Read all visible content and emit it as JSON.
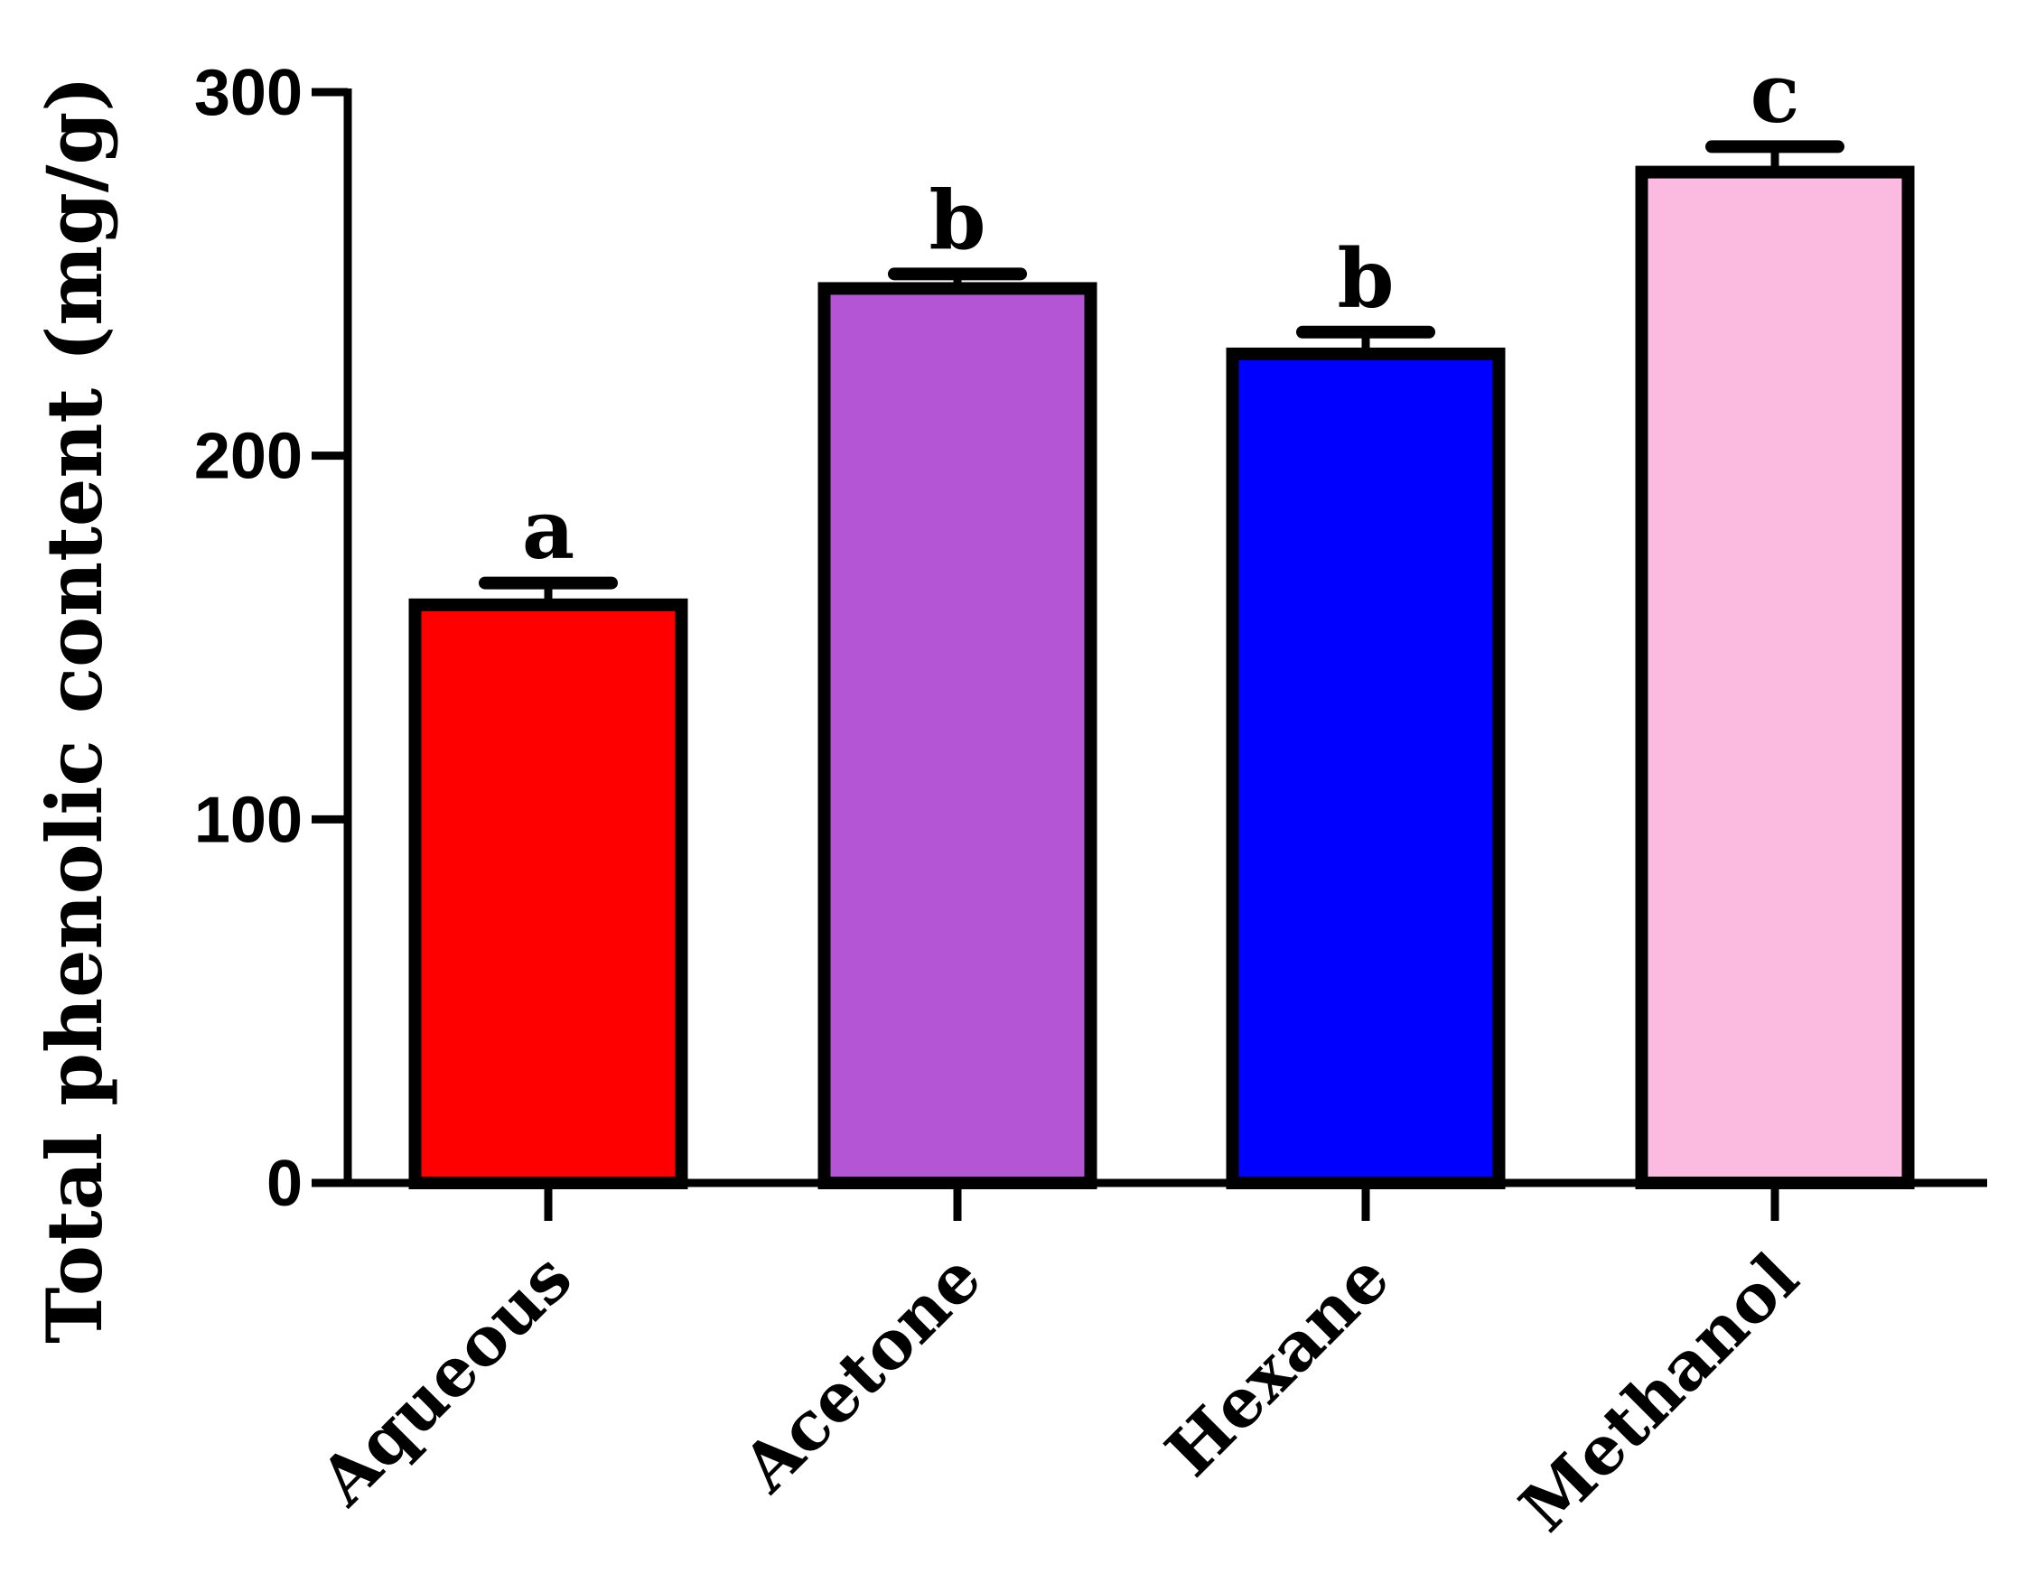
{
  "chart_data": {
    "type": "bar",
    "title": "",
    "xlabel": "",
    "ylabel": "Total phenolic content (mg/g)",
    "ylim": [
      0,
      300
    ],
    "yticks": [
      0,
      100,
      200,
      300
    ],
    "categories": [
      "Aqueous",
      "Acetone",
      "Hexane",
      "Methanol"
    ],
    "values": [
      159,
      246,
      228,
      278
    ],
    "errors": [
      6,
      4,
      6,
      7
    ],
    "significance_letters": [
      "a",
      "b",
      "b",
      "c"
    ],
    "colors": [
      "#ff0000",
      "#b455d6",
      "#0000ff",
      "#fbbadf"
    ],
    "grid": false,
    "legend": "none"
  }
}
